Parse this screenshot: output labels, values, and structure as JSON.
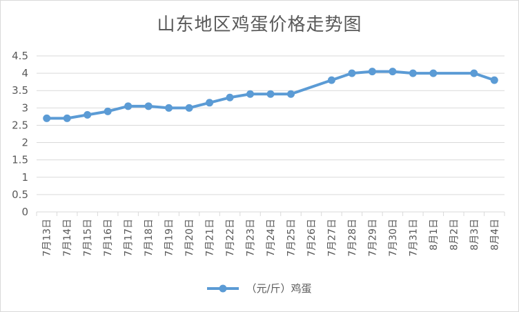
{
  "chart_data": {
    "type": "line",
    "title": "山东地区鸡蛋价格走势图",
    "xlabel": "",
    "ylabel": "",
    "categories": [
      "7月13日",
      "7月14日",
      "7月15日",
      "7月16日",
      "7月17日",
      "7月18日",
      "7月19日",
      "7月20日",
      "7月21日",
      "7月22日",
      "7月23日",
      "7月24日",
      "7月25日",
      "7月26日",
      "7月27日",
      "7月28日",
      "7月29日",
      "7月30日",
      "7月31日",
      "8月1日",
      "8月2日",
      "8月3日",
      "8月4日"
    ],
    "series": [
      {
        "name": "（元/斤）鸡蛋",
        "values": [
          2.7,
          2.7,
          2.8,
          2.9,
          3.05,
          3.05,
          3.0,
          3.0,
          3.15,
          3.3,
          3.4,
          3.4,
          3.4,
          null,
          3.8,
          4.0,
          4.05,
          4.05,
          4.0,
          4.0,
          null,
          4.0,
          3.8
        ],
        "color": "#5b9bd5"
      }
    ],
    "ylim": [
      0,
      4.5
    ],
    "yticks": [
      "0",
      "0.5",
      "1",
      "1.5",
      "2",
      "2.5",
      "3",
      "3.5",
      "4",
      "4.5"
    ],
    "grid": true,
    "legend_position": "bottom"
  }
}
